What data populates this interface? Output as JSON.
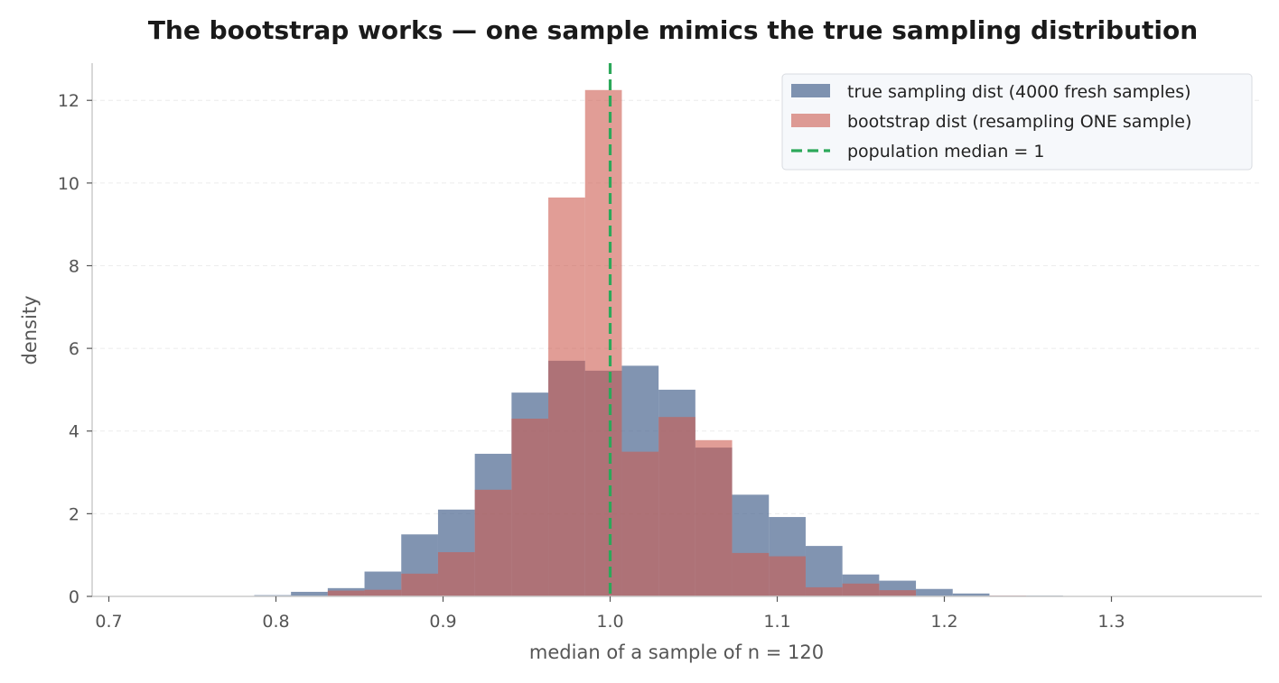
{
  "chart_data": {
    "type": "bar",
    "title": "The bootstrap works — one sample mimics the true sampling distribution",
    "xlabel": "median of a sample of n = 120",
    "ylabel": "density",
    "xlim": [
      0.69,
      1.39
    ],
    "ylim": [
      0,
      12.9
    ],
    "xticks": [
      0.7,
      0.8,
      0.9,
      1.0,
      1.1,
      1.2,
      1.3
    ],
    "xtick_labels": [
      "0.7",
      "0.8",
      "0.9",
      "1.0",
      "1.1",
      "1.2",
      "1.3"
    ],
    "yticks": [
      0,
      2,
      4,
      6,
      8,
      10,
      12
    ],
    "ytick_labels": [
      "0",
      "2",
      "4",
      "6",
      "8",
      "10",
      "12"
    ],
    "grid": "y",
    "legend_position": "top-right",
    "series": [
      {
        "name": "true sampling dist (4000 fresh samples)",
        "kind": "histogram",
        "color": "#4c6690",
        "opacity": 0.7,
        "bin_width": 0.022,
        "bins": [
          {
            "x0": 0.787,
            "x1": 0.809,
            "density": 0.03
          },
          {
            "x0": 0.809,
            "x1": 0.831,
            "density": 0.11
          },
          {
            "x0": 0.831,
            "x1": 0.853,
            "density": 0.2
          },
          {
            "x0": 0.853,
            "x1": 0.875,
            "density": 0.6
          },
          {
            "x0": 0.875,
            "x1": 0.897,
            "density": 1.5
          },
          {
            "x0": 0.897,
            "x1": 0.919,
            "density": 2.1
          },
          {
            "x0": 0.919,
            "x1": 0.941,
            "density": 3.45
          },
          {
            "x0": 0.941,
            "x1": 0.963,
            "density": 4.93
          },
          {
            "x0": 0.963,
            "x1": 0.985,
            "density": 5.7
          },
          {
            "x0": 0.985,
            "x1": 1.007,
            "density": 5.46
          },
          {
            "x0": 1.007,
            "x1": 1.029,
            "density": 5.58
          },
          {
            "x0": 1.029,
            "x1": 1.051,
            "density": 5.0
          },
          {
            "x0": 1.051,
            "x1": 1.073,
            "density": 3.6
          },
          {
            "x0": 1.073,
            "x1": 1.095,
            "density": 2.46
          },
          {
            "x0": 1.095,
            "x1": 1.117,
            "density": 1.92
          },
          {
            "x0": 1.117,
            "x1": 1.139,
            "density": 1.22
          },
          {
            "x0": 1.139,
            "x1": 1.161,
            "density": 0.53
          },
          {
            "x0": 1.161,
            "x1": 1.183,
            "density": 0.38
          },
          {
            "x0": 1.183,
            "x1": 1.205,
            "density": 0.18
          },
          {
            "x0": 1.205,
            "x1": 1.227,
            "density": 0.07
          },
          {
            "x0": 1.227,
            "x1": 1.249,
            "density": 0.02
          },
          {
            "x0": 1.249,
            "x1": 1.271,
            "density": 0.02
          }
        ]
      },
      {
        "name": "bootstrap dist (resampling ONE sample)",
        "kind": "histogram",
        "color": "#cd5c50",
        "opacity": 0.6,
        "bin_width": 0.022,
        "bins": [
          {
            "x0": 0.831,
            "x1": 0.853,
            "density": 0.14
          },
          {
            "x0": 0.853,
            "x1": 0.875,
            "density": 0.16
          },
          {
            "x0": 0.875,
            "x1": 0.897,
            "density": 0.55
          },
          {
            "x0": 0.897,
            "x1": 0.919,
            "density": 1.07
          },
          {
            "x0": 0.919,
            "x1": 0.941,
            "density": 2.58
          },
          {
            "x0": 0.941,
            "x1": 0.963,
            "density": 4.3
          },
          {
            "x0": 0.963,
            "x1": 0.985,
            "density": 9.65
          },
          {
            "x0": 0.985,
            "x1": 1.007,
            "density": 12.25
          },
          {
            "x0": 1.007,
            "x1": 1.029,
            "density": 3.5
          },
          {
            "x0": 1.029,
            "x1": 1.051,
            "density": 4.34
          },
          {
            "x0": 1.051,
            "x1": 1.073,
            "density": 3.78
          },
          {
            "x0": 1.073,
            "x1": 1.095,
            "density": 1.05
          },
          {
            "x0": 1.095,
            "x1": 1.117,
            "density": 0.97
          },
          {
            "x0": 1.117,
            "x1": 1.139,
            "density": 0.22
          },
          {
            "x0": 1.139,
            "x1": 1.161,
            "density": 0.31
          },
          {
            "x0": 1.161,
            "x1": 1.183,
            "density": 0.15
          },
          {
            "x0": 1.227,
            "x1": 1.249,
            "density": 0.02
          }
        ]
      }
    ],
    "reference_line": {
      "name": "population median = 1",
      "x": 1.0,
      "color": "#2ca85a",
      "style": "dashed"
    }
  }
}
